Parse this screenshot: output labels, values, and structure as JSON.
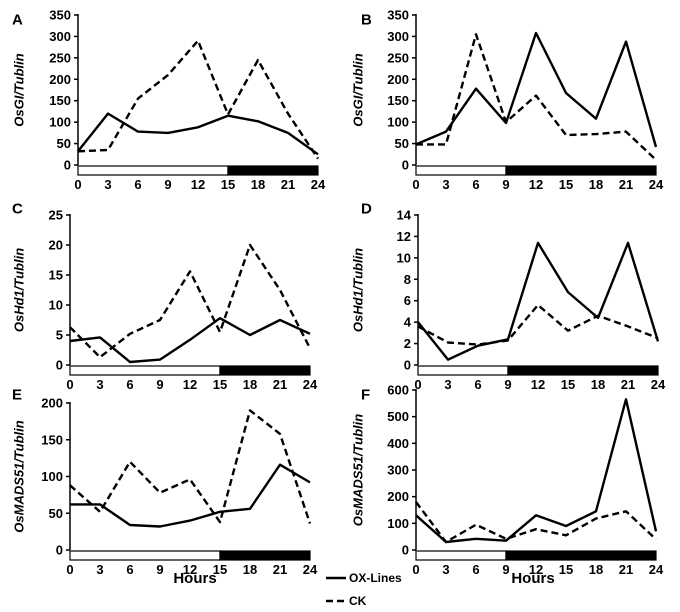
{
  "chart_data": [
    {
      "panel": "A",
      "type": "line",
      "ylabel": "OsGI/Tublin",
      "x": [
        0,
        3,
        6,
        9,
        12,
        15,
        18,
        21,
        24
      ],
      "xticks": [
        "0",
        "3",
        "6",
        "9",
        "12",
        "15",
        "18",
        "21",
        "24"
      ],
      "ylim": [
        0,
        350
      ],
      "yticks": [
        "0",
        "50",
        "100",
        "150",
        "200",
        "250",
        "300",
        "350"
      ],
      "light_end": 15,
      "series": [
        {
          "name": "OX-Lines",
          "values": [
            32,
            120,
            78,
            75,
            88,
            115,
            102,
            75,
            25
          ]
        },
        {
          "name": "CK",
          "values": [
            32,
            35,
            155,
            210,
            290,
            118,
            245,
            120,
            15
          ]
        }
      ]
    },
    {
      "panel": "B",
      "type": "line",
      "ylabel": "OsGI/Tublin",
      "x": [
        0,
        3,
        6,
        9,
        12,
        15,
        18,
        21,
        24
      ],
      "xticks": [
        "0",
        "3",
        "6",
        "9",
        "12",
        "15",
        "18",
        "21",
        "24"
      ],
      "ylim": [
        0,
        350
      ],
      "yticks": [
        "0",
        "50",
        "100",
        "150",
        "200",
        "250",
        "300",
        "350"
      ],
      "light_end": 9,
      "series": [
        {
          "name": "OX-Lines",
          "values": [
            48,
            78,
            178,
            98,
            308,
            168,
            108,
            288,
            42
          ]
        },
        {
          "name": "CK",
          "values": [
            48,
            48,
            305,
            100,
            162,
            70,
            72,
            78,
            12
          ]
        }
      ]
    },
    {
      "panel": "C",
      "type": "line",
      "ylabel": "OsHd1/Tublin",
      "x": [
        0,
        3,
        6,
        9,
        12,
        15,
        18,
        21,
        24
      ],
      "xticks": [
        "0",
        "3",
        "6",
        "9",
        "12",
        "15",
        "18",
        "21",
        "24"
      ],
      "ylim": [
        0,
        25
      ],
      "yticks": [
        "0",
        "5",
        "10",
        "15",
        "20",
        "25"
      ],
      "light_end": 15,
      "series": [
        {
          "name": "OX-Lines",
          "values": [
            4,
            4.6,
            0.5,
            0.9,
            4.2,
            7.8,
            5.0,
            7.5,
            5.2
          ]
        },
        {
          "name": "CK",
          "values": [
            6.3,
            1.3,
            5.2,
            7.5,
            15.6,
            5.5,
            20,
            12.5,
            2.8
          ]
        }
      ]
    },
    {
      "panel": "D",
      "type": "line",
      "ylabel": "OsHd1/Tublin",
      "x": [
        0,
        3,
        6,
        9,
        12,
        15,
        18,
        21,
        24
      ],
      "xticks": [
        "0",
        "3",
        "6",
        "9",
        "12",
        "15",
        "18",
        "21",
        "24"
      ],
      "ylim": [
        0,
        14
      ],
      "yticks": [
        "0",
        "2",
        "4",
        "6",
        "8",
        "10",
        "12",
        "14"
      ],
      "light_end": 9,
      "series": [
        {
          "name": "OX-Lines",
          "values": [
            4.0,
            0.5,
            1.8,
            2.4,
            11.4,
            6.8,
            4.4,
            11.4,
            2.2
          ]
        },
        {
          "name": "CK",
          "values": [
            3.6,
            2.1,
            1.9,
            2.3,
            5.6,
            3.2,
            4.6,
            3.6,
            2.5
          ]
        }
      ]
    },
    {
      "panel": "E",
      "type": "line",
      "ylabel": "OsMADS51/Tublin",
      "x": [
        0,
        3,
        6,
        9,
        12,
        15,
        18,
        21,
        24
      ],
      "xticks": [
        "0",
        "3",
        "6",
        "9",
        "12",
        "15",
        "18",
        "21",
        "24"
      ],
      "ylim": [
        0,
        200
      ],
      "yticks": [
        "0",
        "50",
        "100",
        "150",
        "200"
      ],
      "light_end": 15,
      "series": [
        {
          "name": "OX-Lines",
          "values": [
            62,
            62,
            34,
            32,
            40,
            52,
            56,
            116,
            92
          ]
        },
        {
          "name": "CK",
          "values": [
            88,
            52,
            120,
            78,
            96,
            38,
            190,
            158,
            36
          ]
        }
      ]
    },
    {
      "panel": "F",
      "type": "line",
      "ylabel": "OsMADS51/Tublin",
      "x": [
        0,
        3,
        6,
        9,
        12,
        15,
        18,
        21,
        24
      ],
      "xticks": [
        "0",
        "3",
        "6",
        "9",
        "12",
        "15",
        "18",
        "21",
        "24"
      ],
      "ylim": [
        0,
        600
      ],
      "yticks": [
        "0",
        "100",
        "200",
        "300",
        "400",
        "500",
        "600"
      ],
      "light_end": 9,
      "series": [
        {
          "name": "OX-Lines",
          "values": [
            130,
            30,
            42,
            35,
            130,
            90,
            145,
            565,
            70
          ]
        },
        {
          "name": "CK",
          "values": [
            180,
            30,
            95,
            42,
            78,
            55,
            118,
            145,
            40
          ]
        }
      ]
    }
  ],
  "xlabel": "Hours",
  "legend": {
    "ox_label": "OX-Lines",
    "ck_label": "CK"
  }
}
